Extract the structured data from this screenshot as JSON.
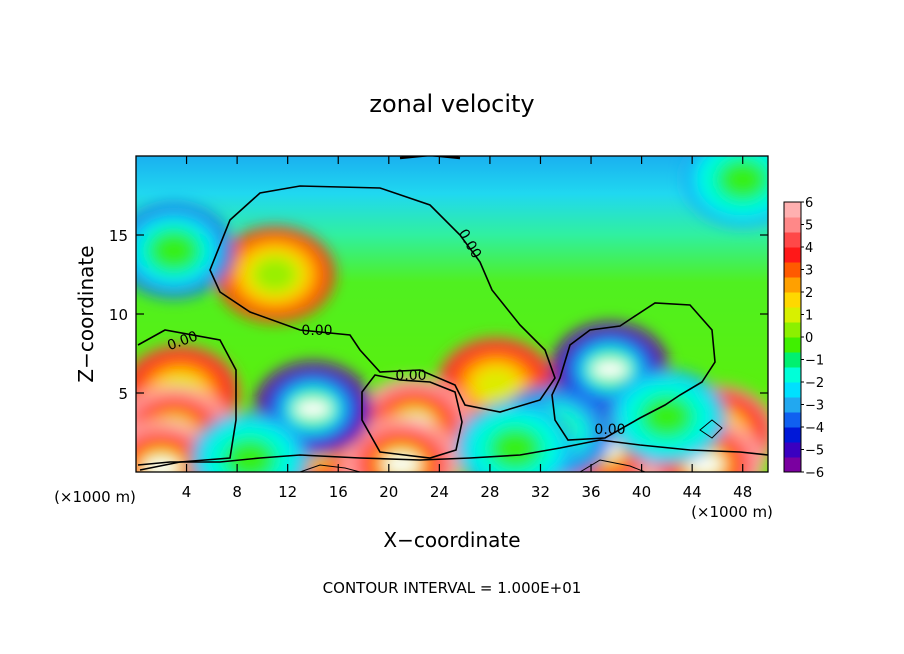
{
  "chart_data": {
    "type": "heatmap",
    "title": "zonal velocity",
    "xlabel": "X−coordinate",
    "ylabel": "Z−coordinate",
    "x_unit": "(×1000 m)",
    "x_unit_right": "(×1000 m)",
    "xlim": [
      0,
      50
    ],
    "ylim": [
      0,
      20
    ],
    "x_ticks": [
      "4",
      "8",
      "12",
      "16",
      "20",
      "24",
      "28",
      "32",
      "36",
      "40",
      "44",
      "48"
    ],
    "x_tick_values": [
      4,
      8,
      12,
      16,
      20,
      24,
      28,
      32,
      36,
      40,
      44,
      48
    ],
    "y_ticks": [
      "5",
      "10",
      "15"
    ],
    "y_tick_values": [
      5,
      10,
      15
    ],
    "colorbar": {
      "ticks": [
        "6",
        "5",
        "4",
        "3",
        "2",
        "1",
        "0",
        "−1",
        "−2",
        "−3",
        "−4",
        "−5",
        "−6"
      ],
      "tick_values": [
        6,
        5,
        4,
        3,
        2,
        1,
        0,
        -1,
        -2,
        -3,
        -4,
        -5,
        -6
      ],
      "range": [
        -6,
        6
      ],
      "colors": [
        "#7a00a0",
        "#3a00c0",
        "#0018d8",
        "#1060f0",
        "#22a8f0",
        "#00e0ff",
        "#00ffd8",
        "#00f070",
        "#40f000",
        "#8cf000",
        "#d8f000",
        "#ffd800",
        "#ffa000",
        "#ff5a00",
        "#ff1818",
        "#ff4848",
        "#ff8888",
        "#ffb0b0"
      ]
    },
    "contour_labels": [
      "0.00",
      "0.00",
      "0.00",
      "0.00",
      "0.00"
    ],
    "contour_level": 0,
    "note": "CONTOUR INTERVAL = 1.000E+01",
    "features": [
      {
        "kind": "jet",
        "x": 11,
        "z": 12.5,
        "value": 3.5
      },
      {
        "kind": "jet",
        "x": 3.5,
        "z": 5,
        "value": 4.5
      },
      {
        "kind": "jet",
        "x": 28.5,
        "z": 5.5,
        "value": 4.5
      },
      {
        "kind": "jet",
        "x": 46,
        "z": 2.5,
        "value": 5
      },
      {
        "kind": "jet",
        "x": 3,
        "z": 2.5,
        "value": 6
      },
      {
        "kind": "jet",
        "x": 22,
        "z": 3,
        "value": 6
      },
      {
        "kind": "jet",
        "x": 14,
        "z": 1.5,
        "value": 6
      },
      {
        "kind": "jet",
        "x": 37,
        "z": 1.5,
        "value": 6
      },
      {
        "kind": "jet",
        "x": 21,
        "z": 0.5,
        "value": 6
      },
      {
        "kind": "jet",
        "x": 45,
        "z": 0.5,
        "value": 6
      },
      {
        "kind": "jet",
        "x": 2,
        "z": 0.3,
        "value": 6
      },
      {
        "kind": "counter",
        "x": 3,
        "z": 14,
        "value": -3.5
      },
      {
        "kind": "counter",
        "x": 14,
        "z": 4,
        "value": -6
      },
      {
        "kind": "counter",
        "x": 37.5,
        "z": 6.5,
        "value": -6
      },
      {
        "kind": "counter",
        "x": 33,
        "z": 2.5,
        "value": -4
      },
      {
        "kind": "counter",
        "x": 48,
        "z": 18.5,
        "value": -3
      },
      {
        "kind": "counter",
        "x": 30,
        "z": 1.5,
        "value": -3
      },
      {
        "kind": "counter",
        "x": 9,
        "z": 0.8,
        "value": -3
      },
      {
        "kind": "counter",
        "x": 42,
        "z": 3.5,
        "value": -3
      }
    ]
  }
}
